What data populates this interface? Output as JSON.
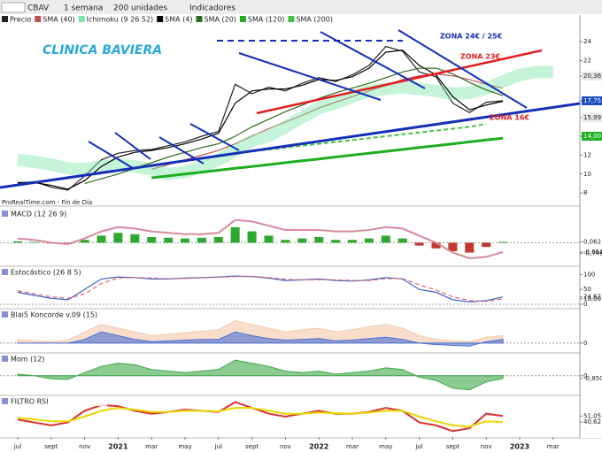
{
  "toolbar": {
    "symbol": "CBAV",
    "period": "1 semana",
    "units": "200 unidades",
    "indicators": "Indicadores"
  },
  "chart_data": [
    {
      "type": "line",
      "title": "CLINICA BAVIERA",
      "source": "ProRealTime.com - Fin de Día",
      "annotations": [
        "ZONA 24€ / 25€",
        "ZONA 23€",
        "ZONA 16€"
      ],
      "categories": [
        "jul",
        null,
        "sept",
        null,
        "nov",
        null,
        "2021",
        null,
        "mar",
        null,
        "may",
        null,
        "jul",
        null,
        "sept",
        null,
        "nov",
        null,
        "2022",
        null,
        "mar",
        null,
        "may",
        null,
        "jul",
        null,
        "sept",
        null,
        "nov",
        null,
        "2023",
        null,
        "mar"
      ],
      "ylim": [
        6.7,
        25.8
      ],
      "yticks": [
        8,
        10,
        12,
        {
          "value": 14,
          "label": "14,00"
        },
        {
          "value": 15.99,
          "label": "15,99"
        },
        {
          "value": 17.75,
          "label": "17,75"
        },
        {
          "value": 20.36,
          "label": "20,36"
        },
        22,
        24
      ],
      "ytick_colors": [
        null,
        null,
        null,
        "#1fae1f",
        "#e7e7e7",
        "#1f4fbf",
        "#e7e7e7",
        null,
        null
      ],
      "series": [
        {
          "name": "Precio",
          "type": "line",
          "color": "#222222",
          "values": [
            9.0,
            9.2,
            8.6,
            8.3,
            9.8,
            11.5,
            12.2,
            12.5,
            12.6,
            13.0,
            13.4,
            14.0,
            14.5,
            19.5,
            18.5,
            19.2,
            18.8,
            19.6,
            20.2,
            19.8,
            20.5,
            21.5,
            23.5,
            23.0,
            20.8,
            20.3,
            17.5,
            16.5,
            17.6,
            17.75,
            null,
            null,
            null
          ]
        },
        {
          "name": "SMA (40)",
          "type": "line",
          "color": "#c0504d",
          "values": [
            null,
            null,
            null,
            null,
            null,
            null,
            null,
            null,
            10.5,
            11.0,
            11.5,
            12.0,
            12.5,
            13.2,
            14.0,
            14.8,
            15.5,
            16.2,
            17.0,
            17.6,
            18.2,
            18.8,
            19.4,
            20.0,
            20.4,
            20.6,
            20.4,
            20.0,
            19.5,
            19.1,
            null,
            null,
            null
          ]
        },
        {
          "name": "Ichimoku (9 26 52)",
          "type": "cloud",
          "color": "#7fe6a8",
          "values": [
            11.5,
            11.3,
            11.0,
            10.6,
            10.5,
            10.8,
            11.0,
            10.8,
            10.5,
            10.0,
            10.2,
            10.8,
            11.5,
            12.5,
            13.5,
            14.0,
            15.0,
            16.0,
            17.0,
            17.5,
            18.2,
            18.8,
            19.0,
            19.2,
            19.0,
            18.8,
            18.5,
            18.6,
            19.0,
            19.8,
            20.5,
            20.8,
            20.8
          ]
        },
        {
          "name": "SMA (4)",
          "type": "line",
          "color": "#000000",
          "values": [
            9.1,
            9.1,
            8.8,
            8.4,
            9.3,
            10.8,
            11.8,
            12.3,
            12.5,
            12.8,
            13.2,
            13.7,
            14.3,
            17.5,
            18.8,
            19.0,
            19.0,
            19.4,
            20.0,
            19.9,
            20.3,
            21.2,
            22.9,
            23.1,
            21.5,
            20.5,
            18.2,
            16.8,
            17.3,
            17.7,
            null,
            null,
            null
          ]
        },
        {
          "name": "SMA (20)",
          "type": "line",
          "color": "#2e6b1f",
          "values": [
            null,
            null,
            null,
            null,
            9,
            9.5,
            10,
            10.6,
            11.2,
            11.8,
            12.3,
            12.8,
            13.2,
            14.0,
            15.0,
            15.8,
            16.6,
            17.3,
            18.0,
            18.6,
            19.1,
            19.6,
            20.2,
            20.8,
            21.2,
            21.2,
            20.6,
            19.7,
            18.9,
            18.3,
            null,
            null,
            null
          ]
        },
        {
          "name": "SMA (120)",
          "type": "line",
          "color": "#1fae1f",
          "width": 3,
          "values": [
            null,
            null,
            null,
            null,
            null,
            null,
            null,
            null,
            9.6,
            9.8,
            10.0,
            10.2,
            10.4,
            10.6,
            10.8,
            11.0,
            11.2,
            11.4,
            11.6,
            11.8,
            12.0,
            12.2,
            12.4,
            12.6,
            12.8,
            13.0,
            13.2,
            13.4,
            13.6,
            13.8,
            null,
            null,
            null
          ]
        },
        {
          "name": "SMA (200)",
          "type": "line",
          "color": "#44c044",
          "dashed": true,
          "width": 2,
          "values": [
            null,
            null,
            null,
            null,
            null,
            null,
            null,
            null,
            null,
            null,
            null,
            null,
            12.0,
            12.2,
            12.4,
            12.6,
            12.8,
            13.0,
            13.2,
            13.4,
            13.6,
            13.8,
            14.0,
            14.2,
            14.4,
            14.6,
            14.8,
            15.0,
            15.3,
            null,
            null,
            null,
            null
          ]
        }
      ]
    },
    {
      "type": "bar",
      "title": "MACD (12 26 9)",
      "ylim": [
        -1.6,
        2.4
      ],
      "yticks": [
        {
          "value": 0.062,
          "label": "0,062"
        },
        {
          "value": -0.661,
          "label": "-0,661"
        },
        {
          "value": -0.746,
          "label": "-0,746"
        }
      ],
      "series": [
        {
          "type": "bar",
          "color": "#2fa82f",
          "negative_color": "#c0392b",
          "values": [
            0.1,
            0.05,
            -0.05,
            -0.1,
            0.2,
            0.5,
            0.7,
            0.6,
            0.4,
            0.35,
            0.3,
            0.35,
            0.4,
            1.1,
            0.8,
            0.5,
            0.2,
            0.3,
            0.4,
            0.2,
            0.2,
            0.3,
            0.5,
            0.3,
            -0.2,
            -0.4,
            -0.6,
            -0.7,
            -0.3,
            0.062,
            null,
            null,
            null
          ]
        },
        {
          "type": "line",
          "color": "#d98a9a",
          "width": 2,
          "values": [
            0.3,
            0.2,
            0.0,
            -0.1,
            0.3,
            0.8,
            1.1,
            1.0,
            0.8,
            0.7,
            0.6,
            0.6,
            0.7,
            1.6,
            1.5,
            1.2,
            0.9,
            0.9,
            0.9,
            0.8,
            0.8,
            0.9,
            1.1,
            1.0,
            0.5,
            0.0,
            -0.7,
            -1.1,
            -1.0,
            -0.661,
            null,
            null,
            null
          ]
        }
      ]
    },
    {
      "type": "line",
      "title": "Estocástico (26 8 5)",
      "ylim": [
        -12,
        125
      ],
      "yticks": [
        0,
        50,
        100,
        {
          "value": 24.62,
          "label": "24,62"
        },
        {
          "value": 18,
          "label": "18,00"
        }
      ],
      "series": [
        {
          "type": "line",
          "color": "#3a5fcd",
          "values": [
            40,
            30,
            20,
            15,
            50,
            85,
            92,
            90,
            85,
            85,
            88,
            90,
            92,
            95,
            93,
            88,
            80,
            82,
            85,
            80,
            78,
            82,
            90,
            85,
            50,
            40,
            15,
            8,
            12,
            24.62,
            null,
            null,
            null
          ]
        },
        {
          "type": "line",
          "color": "#e06666",
          "dashed": true,
          "values": [
            45,
            35,
            25,
            20,
            35,
            70,
            88,
            90,
            88,
            86,
            87,
            89,
            91,
            93,
            94,
            90,
            84,
            82,
            83,
            82,
            80,
            80,
            86,
            87,
            65,
            48,
            25,
            12,
            10,
            18,
            null,
            null,
            null
          ]
        }
      ]
    },
    {
      "type": "area",
      "title": "Blai5 Koncorde v.09 (15)",
      "ylim": [
        -12,
        45
      ],
      "yticks": [
        0
      ],
      "series": [
        {
          "type": "area",
          "color": "#f5c9a8",
          "values": [
            5,
            3,
            2,
            4,
            15,
            25,
            20,
            15,
            10,
            12,
            14,
            16,
            18,
            30,
            25,
            20,
            15,
            18,
            20,
            15,
            18,
            22,
            25,
            20,
            10,
            5,
            3,
            2,
            8,
            10,
            null,
            null,
            null
          ]
        },
        {
          "type": "area",
          "color": "#4a6fd6",
          "values": [
            0,
            0,
            0,
            0,
            5,
            15,
            10,
            5,
            2,
            3,
            4,
            5,
            5,
            15,
            10,
            6,
            4,
            5,
            6,
            3,
            4,
            6,
            8,
            5,
            0,
            -2,
            -3,
            -4,
            2,
            5,
            null,
            null,
            null
          ]
        }
      ]
    },
    {
      "type": "area",
      "title": "Mom (12)",
      "ylim": [
        -6,
        7
      ],
      "yticks": [
        0,
        {
          "value": -0.85,
          "label": "-0,850"
        }
      ],
      "series": [
        {
          "type": "area",
          "color": "#3fa84a",
          "negative_color": "#c77b80",
          "values": [
            0.5,
            0,
            -1,
            -1.2,
            1,
            3,
            4,
            3.5,
            2,
            1.5,
            1,
            1.5,
            2,
            5,
            4,
            3,
            1.5,
            1,
            1.5,
            0.5,
            1,
            1.5,
            2.5,
            2,
            -0.5,
            -1.5,
            -4,
            -4.5,
            -2,
            -0.85,
            null,
            null,
            null
          ]
        }
      ]
    },
    {
      "type": "line",
      "title": "FILTRO RSI",
      "ylim": [
        15,
        85
      ],
      "yticks": [
        {
          "value": 51.05,
          "label": "51,05"
        },
        {
          "value": 40.62,
          "label": "40,62"
        }
      ],
      "series": [
        {
          "type": "line",
          "color": "#d93030",
          "width": 2,
          "values": [
            45,
            40,
            35,
            40,
            60,
            70,
            68,
            60,
            55,
            58,
            62,
            60,
            58,
            75,
            65,
            55,
            50,
            55,
            60,
            55,
            55,
            58,
            65,
            60,
            40,
            35,
            25,
            30,
            55,
            51.05,
            null,
            null,
            null
          ]
        },
        {
          "type": "line",
          "color": "#e8d800",
          "width": 2,
          "values": [
            48,
            45,
            42,
            42,
            50,
            60,
            65,
            62,
            58,
            58,
            60,
            60,
            59,
            65,
            65,
            60,
            55,
            55,
            57,
            56,
            55,
            57,
            60,
            60,
            50,
            42,
            35,
            33,
            42,
            40.62,
            null,
            null,
            null
          ]
        }
      ]
    }
  ]
}
